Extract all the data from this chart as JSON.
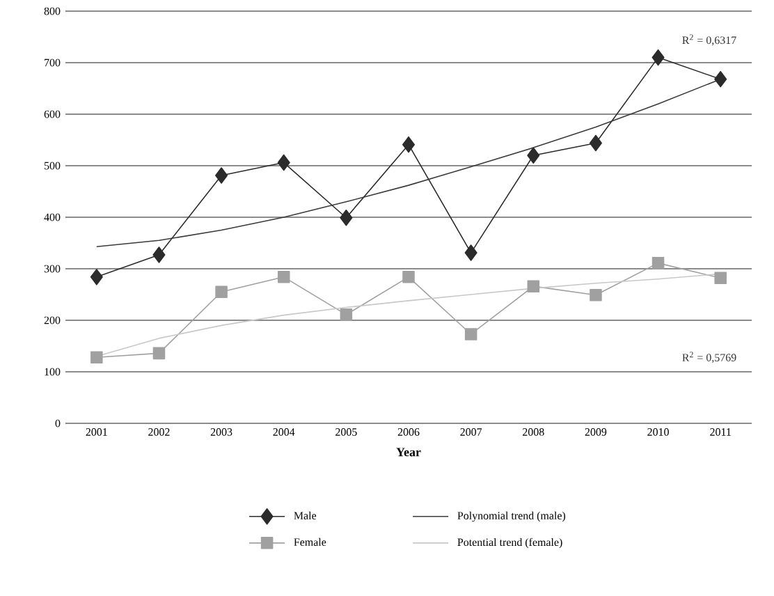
{
  "chart_data": {
    "type": "line",
    "xlabel": "Year",
    "categories": [
      "2001",
      "2002",
      "2003",
      "2004",
      "2005",
      "2006",
      "2007",
      "2008",
      "2009",
      "2010",
      "2011"
    ],
    "series": [
      {
        "name": "Male",
        "color": "#2b2b2b",
        "marker": "diamond",
        "values": [
          284,
          327,
          481,
          506,
          399,
          541,
          331,
          520,
          544,
          710,
          668
        ]
      },
      {
        "name": "Polynomial trend (male)",
        "color": "#3a3a3a",
        "marker": "none",
        "values": [
          343,
          355,
          375,
          400,
          430,
          462,
          498,
          535,
          575,
          620,
          668
        ]
      },
      {
        "name": "Female",
        "color": "#a0a0a0",
        "marker": "square",
        "values": [
          128,
          136,
          255,
          284,
          211,
          284,
          173,
          266,
          249,
          311,
          282
        ]
      },
      {
        "name": "Potential trend (female)",
        "color": "#c8c8c8",
        "marker": "none",
        "values": [
          130,
          165,
          190,
          210,
          225,
          238,
          250,
          262,
          272,
          280,
          290
        ]
      }
    ],
    "ylim": [
      0,
      800
    ],
    "yticks": [
      0,
      100,
      200,
      300,
      400,
      500,
      600,
      700,
      800
    ],
    "grid": "y",
    "legend": "bottom",
    "annotations": [
      "R$^{2}$ = 0,6317",
      "R$^{2}$ = 0,5769"
    ]
  }
}
